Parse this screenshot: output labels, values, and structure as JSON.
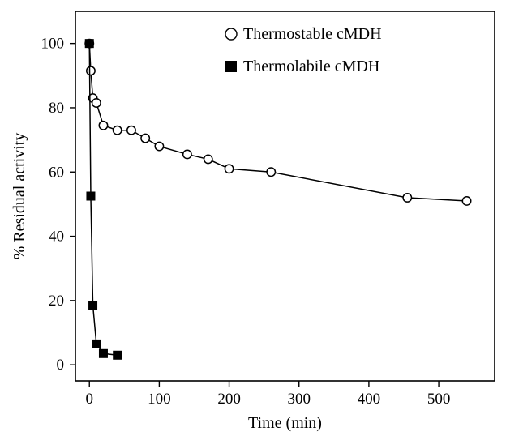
{
  "chart_data": {
    "type": "line",
    "title": "",
    "xlabel": "Time (min)",
    "ylabel": "% Residual activity",
    "xlim": [
      -20,
      580
    ],
    "ylim": [
      -5,
      110
    ],
    "xticks": [
      0,
      100,
      200,
      300,
      400,
      500
    ],
    "yticks": [
      0,
      20,
      40,
      60,
      80,
      100
    ],
    "grid": false,
    "legend_position": "top-right",
    "series": [
      {
        "name": "Thermostable cMDH",
        "marker": "open-circle",
        "x": [
          0,
          2,
          5,
          10,
          20,
          40,
          60,
          80,
          100,
          140,
          170,
          200,
          260,
          455,
          540
        ],
        "y": [
          100,
          91.5,
          83,
          81.5,
          74.5,
          73,
          73,
          70.5,
          68,
          65.5,
          64,
          61,
          60,
          52,
          51
        ]
      },
      {
        "name": "Thermolabile cMDH",
        "marker": "filled-square",
        "x": [
          0,
          2,
          5,
          10,
          20,
          40
        ],
        "y": [
          100,
          52.5,
          18.5,
          6.5,
          3.5,
          3
        ]
      }
    ]
  }
}
